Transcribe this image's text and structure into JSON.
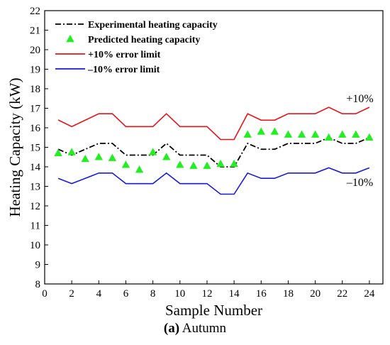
{
  "chart_data": {
    "type": "line",
    "xlabel": "Sample Number",
    "ylabel": "Heating Capacity (kW)",
    "xlim": [
      0,
      25
    ],
    "ylim": [
      8,
      22
    ],
    "xticks": [
      0,
      2,
      4,
      6,
      8,
      10,
      12,
      14,
      16,
      18,
      20,
      22,
      24
    ],
    "yticks": [
      8,
      9,
      10,
      11,
      12,
      13,
      14,
      15,
      16,
      17,
      18,
      19,
      20,
      21,
      22
    ],
    "x": [
      1,
      2,
      3,
      4,
      5,
      6,
      7,
      8,
      9,
      10,
      11,
      12,
      13,
      14,
      15,
      16,
      17,
      18,
      19,
      20,
      21,
      22,
      23,
      24
    ],
    "grid": false,
    "legend": "top-left",
    "series": [
      {
        "name": "Experimental heating capacity",
        "style": "dashdot",
        "color": "#000000",
        "values": [
          14.9,
          14.6,
          14.9,
          15.2,
          15.2,
          14.6,
          14.6,
          14.6,
          15.2,
          14.6,
          14.6,
          14.6,
          14.0,
          14.0,
          15.2,
          14.9,
          14.9,
          15.2,
          15.2,
          15.2,
          15.5,
          15.2,
          15.2,
          15.5
        ]
      },
      {
        "name": "Predicted heating capacity",
        "style": "triangle-marker",
        "color": "#22ee22",
        "values": [
          14.7,
          14.75,
          14.4,
          14.5,
          14.45,
          14.1,
          13.85,
          14.75,
          14.5,
          14.1,
          14.05,
          14.05,
          14.15,
          14.15,
          15.65,
          15.8,
          15.8,
          15.65,
          15.65,
          15.65,
          15.5,
          15.65,
          15.65,
          15.5
        ]
      },
      {
        "name": "+10% error limit",
        "style": "solid",
        "color": "#e8141a",
        "values": [
          16.4,
          16.06,
          16.39,
          16.72,
          16.72,
          16.06,
          16.06,
          16.06,
          16.72,
          16.06,
          16.06,
          16.06,
          15.4,
          15.4,
          16.72,
          16.39,
          16.39,
          16.72,
          16.72,
          16.72,
          17.05,
          16.72,
          16.72,
          17.05
        ]
      },
      {
        "name": "–10% error limit",
        "style": "solid",
        "color": "#1a1adc",
        "values": [
          13.41,
          13.14,
          13.41,
          13.68,
          13.68,
          13.14,
          13.14,
          13.14,
          13.68,
          13.14,
          13.14,
          13.14,
          12.6,
          12.6,
          13.68,
          13.41,
          13.41,
          13.68,
          13.68,
          13.68,
          13.95,
          13.68,
          13.68,
          13.95
        ]
      }
    ],
    "annotations": [
      {
        "text": "+10%",
        "x": 23.3,
        "y": 17.5
      },
      {
        "text": "–10%",
        "x": 23.3,
        "y": 13.2
      }
    ]
  },
  "caption": {
    "label": "(a)",
    "text": " Autumn"
  }
}
